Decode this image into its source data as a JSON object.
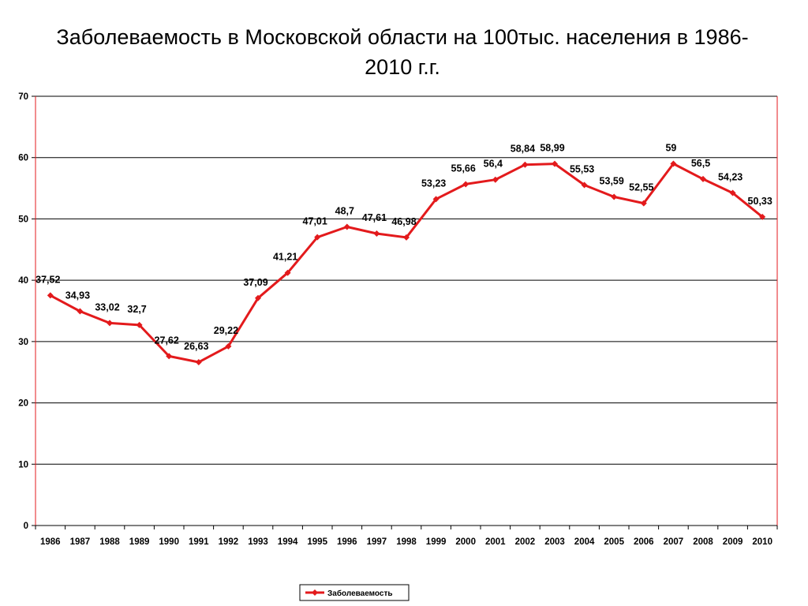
{
  "title": "Заболеваемость в Московской области на 100тыс. населения в 1986-2010 г.г.",
  "chart_data": {
    "type": "line",
    "title": "Заболеваемость в Московской области на 100тыс. населения в 1986-2010 г.г.",
    "xlabel": "",
    "ylabel": "",
    "ylim": [
      0,
      70
    ],
    "yticks": [
      0,
      10,
      20,
      30,
      40,
      50,
      60,
      70
    ],
    "grid": true,
    "legend_position": "bottom",
    "series_color": "#e31a1c",
    "categories": [
      "1986",
      "1987",
      "1988",
      "1989",
      "1990",
      "1991",
      "1992",
      "1993",
      "1994",
      "1995",
      "1996",
      "1997",
      "1998",
      "1999",
      "2000",
      "2001",
      "2002",
      "2003",
      "2004",
      "2005",
      "2006",
      "2007",
      "2008",
      "2009",
      "2010"
    ],
    "series": [
      {
        "name": "Заболеваемость",
        "values": [
          37.52,
          34.93,
          33.02,
          32.7,
          27.62,
          26.63,
          29.22,
          37.09,
          41.21,
          47.01,
          48.7,
          47.61,
          46.98,
          53.23,
          55.66,
          56.4,
          58.84,
          58.99,
          55.53,
          53.59,
          52.55,
          59,
          56.5,
          54.23,
          50.33
        ],
        "labels": [
          "37,52",
          "34,93",
          "33,02",
          "32,7",
          "27,62",
          "26,63",
          "29,22",
          "37,09",
          "41,21",
          "47,01",
          "48,7",
          "47,61",
          "46,98",
          "53,23",
          "55,66",
          "56,4",
          "58,84",
          "58,99",
          "55,53",
          "53,59",
          "52,55",
          "59",
          "56,5",
          "54,23",
          "50,33"
        ]
      }
    ]
  }
}
